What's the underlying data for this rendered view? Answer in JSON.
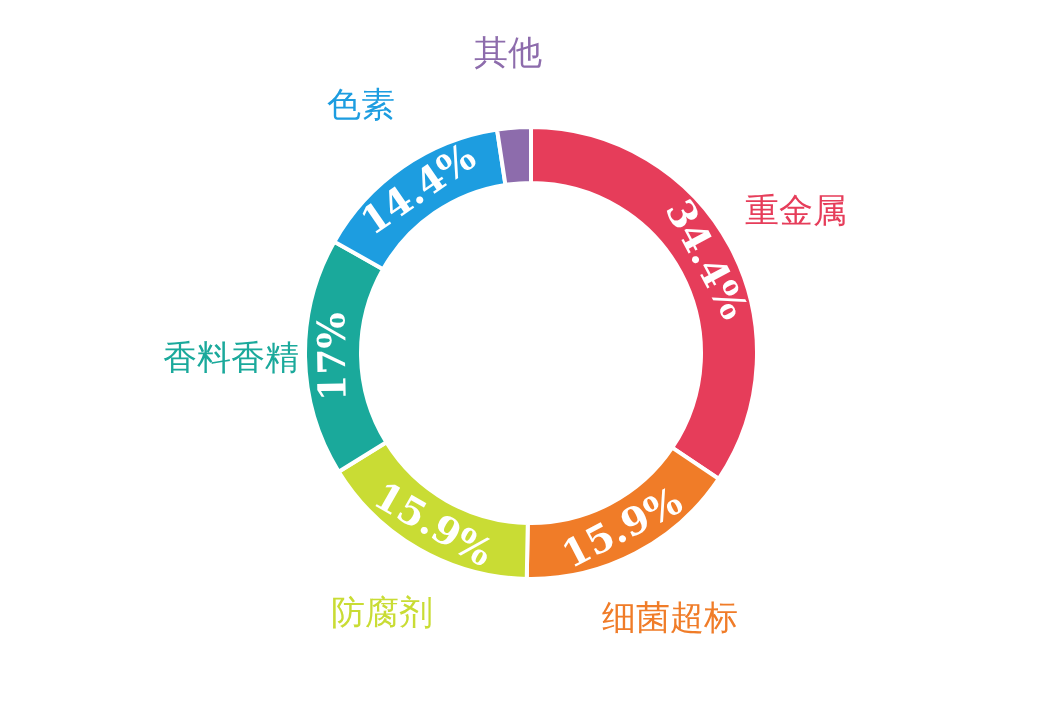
{
  "chart_data": {
    "type": "donut",
    "categories": [
      "重金属",
      "细菌超标",
      "防腐剂",
      "香料香精",
      "色素",
      "其他"
    ],
    "values": [
      34.4,
      15.9,
      15.9,
      17,
      14.4,
      2.4
    ],
    "colors": [
      "#e63d5a",
      "#f07c28",
      "#c9dc34",
      "#1aa99b",
      "#1d9de0",
      "#8d6cac"
    ],
    "value_labels": [
      "34.4%",
      "15.9%",
      "15.9%",
      "17%",
      "14.4%",
      null
    ]
  }
}
